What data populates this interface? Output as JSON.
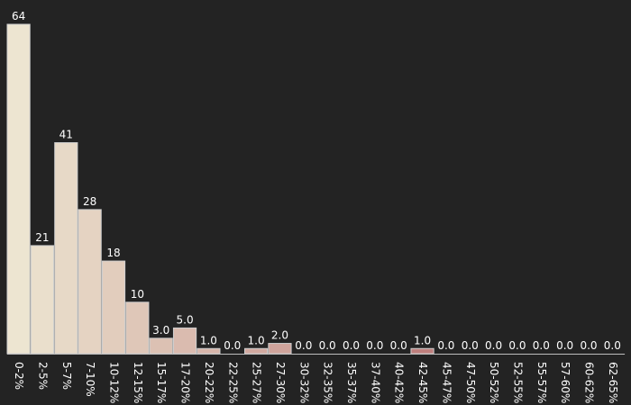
{
  "chart_data": {
    "type": "bar",
    "title": "",
    "xlabel": "",
    "ylabel": "",
    "ylim": [
      0,
      64
    ],
    "grid": false,
    "legend": "none",
    "categories": [
      "0-2%",
      "2-5%",
      "5-7%",
      "7-10%",
      "10-12%",
      "12-15%",
      "15-17%",
      "17-20%",
      "20-22%",
      "22-25%",
      "25-27%",
      "27-30%",
      "30-32%",
      "32-35%",
      "35-37%",
      "37-40%",
      "40-42%",
      "42-45%",
      "45-47%",
      "47-50%",
      "50-52%",
      "52-55%",
      "55-57%",
      "57-60%",
      "60-62%",
      "62-65%"
    ],
    "values": [
      64,
      21,
      41,
      28,
      18,
      10,
      3.0,
      5.0,
      1.0,
      0.0,
      1.0,
      2.0,
      0.0,
      0.0,
      0.0,
      0.0,
      0.0,
      1.0,
      0.0,
      0.0,
      0.0,
      0.0,
      0.0,
      0.0,
      0.0,
      0.0
    ],
    "value_labels": [
      "64",
      "21",
      "41",
      "28",
      "18",
      "10",
      "3.0",
      "5.0",
      "1.0",
      "0.0",
      "1.0",
      "2.0",
      "0.0",
      "0.0",
      "0.0",
      "0.0",
      "0.0",
      "1.0",
      "0.0",
      "0.0",
      "0.0",
      "0.0",
      "0.0",
      "0.0",
      "0.0",
      "0.0"
    ],
    "colors": {
      "background": "#232323",
      "text": "#ffffff",
      "bar_light": "#ede5d1",
      "bar_dark": "#a84f56"
    }
  }
}
